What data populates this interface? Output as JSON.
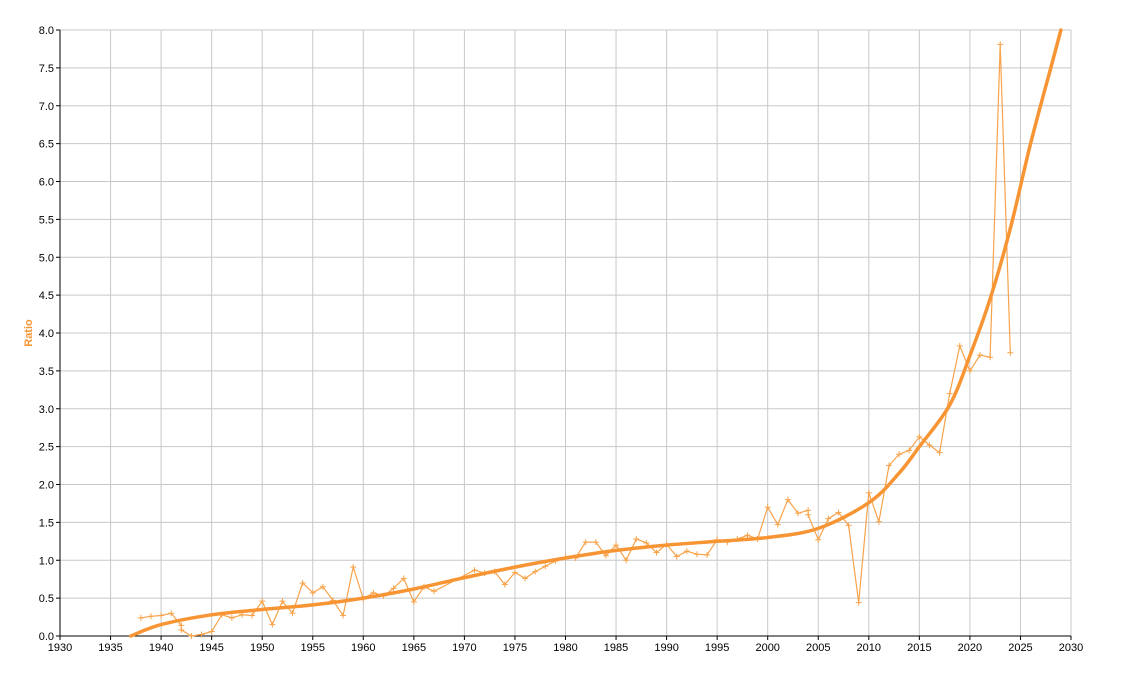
{
  "chart_data": {
    "type": "line",
    "title": "",
    "xlabel": "",
    "ylabel": "Ratio",
    "xlim": [
      1930,
      2030
    ],
    "ylim": [
      0,
      8
    ],
    "x_ticks": [
      "1930",
      "1935",
      "1940",
      "1945",
      "1950",
      "1955",
      "1960",
      "1965",
      "1970",
      "1975",
      "1980",
      "1985",
      "1990",
      "1995",
      "2000",
      "2005",
      "2010",
      "2015",
      "2020",
      "2025",
      "2030"
    ],
    "y_ticks": [
      "0.0",
      "0.5",
      "1.0",
      "1.5",
      "2.0",
      "2.5",
      "3.0",
      "3.5",
      "4.0",
      "4.5",
      "5.0",
      "5.5",
      "6.0",
      "6.5",
      "7.0",
      "7.5",
      "8.0"
    ],
    "grid": true,
    "legend": "none",
    "colors": {
      "series": "#f7a34b",
      "trend": "#f79535",
      "grid": "#c8c8c8",
      "axis": "#000000"
    },
    "series": [
      {
        "marker": "plus",
        "x": [
          1938,
          1939,
          1940,
          1941,
          1942,
          1942,
          1943,
          1944,
          1945,
          1946,
          1947,
          1948,
          1949,
          1950,
          1951,
          1952,
          1953,
          1954,
          1955,
          1956,
          1957,
          1958,
          1959,
          1960,
          1961,
          1962,
          1963,
          1964,
          1965,
          1966,
          1967,
          1971,
          1972,
          1973,
          1974,
          1975,
          1976,
          1977,
          1978,
          1979,
          1980,
          1981,
          1982,
          1983,
          1984,
          1985,
          1986,
          1987,
          1988,
          1989,
          1990,
          1991,
          1992,
          1993,
          1994,
          1995,
          1996,
          1997,
          1998,
          1999,
          2000,
          2001,
          2002,
          2003,
          2004,
          2004,
          2005,
          2006,
          2007,
          2008,
          2009,
          2010,
          2011,
          2012,
          2013,
          2014,
          2015,
          2016,
          2017,
          2018,
          2019,
          2020,
          2021,
          2022,
          2023,
          2024
        ],
        "values": [
          0.24,
          0.26,
          0.27,
          0.3,
          0.14,
          0.08,
          0.0,
          0.02,
          0.06,
          0.28,
          0.24,
          0.28,
          0.27,
          0.46,
          0.15,
          0.46,
          0.3,
          0.7,
          0.57,
          0.65,
          0.47,
          0.27,
          0.91,
          0.49,
          0.57,
          0.53,
          0.63,
          0.76,
          0.45,
          0.65,
          0.59,
          0.87,
          0.83,
          0.85,
          0.68,
          0.84,
          0.76,
          0.85,
          0.92,
          0.99,
          1.04,
          1.03,
          1.24,
          1.24,
          1.06,
          1.2,
          1.0,
          1.28,
          1.23,
          1.1,
          1.21,
          1.05,
          1.12,
          1.08,
          1.07,
          1.27,
          1.24,
          1.28,
          1.33,
          1.28,
          1.7,
          1.47,
          1.8,
          1.62,
          1.66,
          1.6,
          1.27,
          1.55,
          1.63,
          1.46,
          0.44,
          1.89,
          1.51,
          2.25,
          2.4,
          2.45,
          2.63,
          2.52,
          2.42,
          3.2,
          3.83,
          3.5,
          3.71,
          3.68,
          7.81,
          3.74
        ]
      },
      {
        "name": "",
        "style": "smooth-trend",
        "x": [
          1937,
          1940,
          1945,
          1950,
          1955,
          1960,
          1965,
          1970,
          1975,
          1980,
          1985,
          1990,
          1995,
          2000,
          2005,
          2010,
          2013,
          2015,
          2018,
          2020,
          2022,
          2024,
          2026,
          2028,
          2029
        ],
        "values": [
          0.0,
          0.15,
          0.28,
          0.35,
          0.41,
          0.5,
          0.62,
          0.77,
          0.91,
          1.03,
          1.13,
          1.2,
          1.25,
          1.3,
          1.42,
          1.76,
          2.15,
          2.5,
          3.05,
          3.7,
          4.45,
          5.38,
          6.5,
          7.5,
          8.0
        ]
      }
    ]
  }
}
